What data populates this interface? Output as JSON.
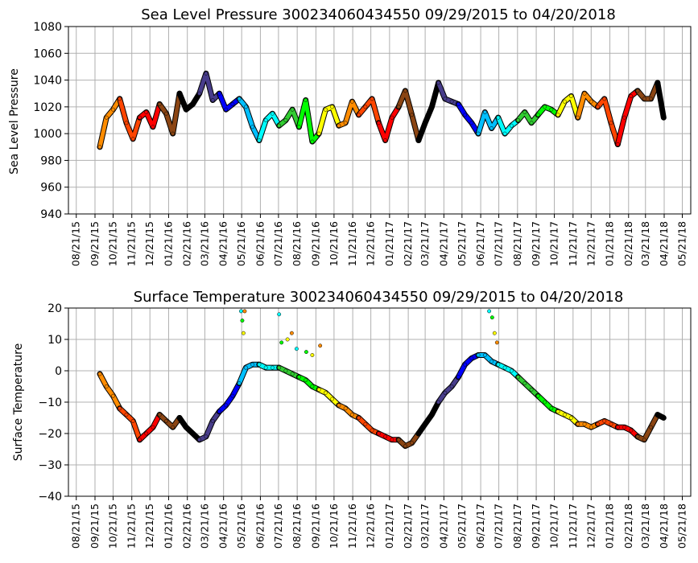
{
  "chart_data": [
    {
      "type": "line",
      "title": "Sea Level Pressure 300234060434550  09/29/2015 to 04/20/2018",
      "xlabel": "",
      "ylabel": "Sea Level Pressure",
      "ylim": [
        940,
        1080
      ],
      "yticks": [
        "940",
        "960",
        "980",
        "1000",
        "1020",
        "1040",
        "1060",
        "1080"
      ],
      "xticks": [
        "08/21/15",
        "09/21/15",
        "10/21/15",
        "11/21/15",
        "12/21/15",
        "01/21/16",
        "02/21/16",
        "03/21/16",
        "04/21/16",
        "05/21/16",
        "06/21/16",
        "07/21/16",
        "08/21/16",
        "09/21/16",
        "10/21/16",
        "11/21/16",
        "12/21/16",
        "01/21/17",
        "02/21/17",
        "03/21/17",
        "04/21/17",
        "05/21/17",
        "06/21/17",
        "07/21/17",
        "08/21/17",
        "09/21/17",
        "10/21/17",
        "11/21/17",
        "12/21/17",
        "01/21/18",
        "02/21/18",
        "03/21/18",
        "04/21/18",
        "05/21/18"
      ],
      "grid": true,
      "legend": "none",
      "x": [
        "09/29/15",
        "10/10/15",
        "10/21/15",
        "11/01/15",
        "11/12/15",
        "11/23/15",
        "12/04/15",
        "12/15/15",
        "12/26/15",
        "01/06/16",
        "01/17/16",
        "01/28/16",
        "02/08/16",
        "02/19/16",
        "03/01/16",
        "03/12/16",
        "03/23/16",
        "04/03/16",
        "04/14/16",
        "04/25/16",
        "05/06/16",
        "05/17/16",
        "05/28/16",
        "06/08/16",
        "06/19/16",
        "06/30/16",
        "07/11/16",
        "07/22/16",
        "08/02/16",
        "08/13/16",
        "08/24/16",
        "09/04/16",
        "09/15/16",
        "09/26/16",
        "10/07/16",
        "10/18/16",
        "10/29/16",
        "11/09/16",
        "11/20/16",
        "12/01/16",
        "12/12/16",
        "12/23/16",
        "01/03/17",
        "01/14/17",
        "01/25/17",
        "02/05/17",
        "02/16/17",
        "02/27/17",
        "03/10/17",
        "03/21/17",
        "04/01/17",
        "04/12/17",
        "04/23/17",
        "05/04/17",
        "05/15/17",
        "05/26/17",
        "06/06/17",
        "06/17/17",
        "06/28/17",
        "07/09/17",
        "07/20/17",
        "07/31/17",
        "08/11/17",
        "08/22/17",
        "09/02/17",
        "09/13/17",
        "09/24/17",
        "10/05/17",
        "10/16/17",
        "10/27/17",
        "11/07/17",
        "11/18/17",
        "11/29/17",
        "12/10/17",
        "12/21/17",
        "01/01/18",
        "01/12/18",
        "01/23/18",
        "02/03/18",
        "02/14/18",
        "02/25/18",
        "03/08/18",
        "03/19/18",
        "03/30/18",
        "04/10/18",
        "04/20/18"
      ],
      "y": [
        990,
        1012,
        1018,
        1026,
        1008,
        996,
        1012,
        1016,
        1005,
        1022,
        1015,
        1000,
        1030,
        1018,
        1022,
        1030,
        1045,
        1025,
        1030,
        1018,
        1022,
        1026,
        1020,
        1005,
        995,
        1010,
        1015,
        1006,
        1010,
        1018,
        1005,
        1025,
        994,
        1000,
        1018,
        1020,
        1006,
        1008,
        1024,
        1014,
        1020,
        1026,
        1008,
        995,
        1012,
        1020,
        1032,
        1014,
        995,
        1008,
        1020,
        1038,
        1026,
        1024,
        1022,
        1014,
        1008,
        1000,
        1016,
        1004,
        1012,
        1000,
        1006,
        1010,
        1016,
        1008,
        1014,
        1020,
        1018,
        1014,
        1024,
        1028,
        1012,
        1030,
        1024,
        1020,
        1026,
        1008,
        992,
        1012,
        1028,
        1032,
        1026,
        1026,
        1038,
        1012
      ],
      "colors": [
        "#ff8c00",
        "#ff4500",
        "#ff0000",
        "#8b4513",
        "#000000",
        "#483d8b",
        "#0000ff",
        "#00bfff",
        "#00ffff",
        "#32cd32",
        "#00ff00",
        "#ffff00",
        "#ff8c00",
        "#ff4500",
        "#ff0000",
        "#8b4513",
        "#000000",
        "#483d8b",
        "#0000ff",
        "#00bfff",
        "#00ffff",
        "#32cd32",
        "#00ff00",
        "#ffff00",
        "#ff8c00",
        "#ff4500",
        "#ff0000",
        "#8b4513",
        "#000000",
        "#483d8b",
        "#0000ff",
        "#00bfff"
      ]
    },
    {
      "type": "scatter",
      "title": "Surface Temperature 300234060434550  09/29/2015 to 04/20/2018",
      "xlabel": "",
      "ylabel": "Surface Temperature",
      "ylim": [
        -40,
        20
      ],
      "yticks": [
        "−40",
        "−30",
        "−20",
        "−10",
        "0",
        "10",
        "20"
      ],
      "xticks": [
        "08/21/15",
        "09/21/15",
        "10/21/15",
        "11/21/15",
        "12/21/15",
        "01/21/16",
        "02/21/16",
        "03/21/16",
        "04/21/16",
        "05/21/16",
        "06/21/16",
        "07/21/16",
        "08/21/16",
        "09/21/16",
        "10/21/16",
        "11/21/16",
        "12/21/16",
        "01/21/17",
        "02/21/17",
        "03/21/17",
        "04/21/17",
        "05/21/17",
        "06/21/17",
        "07/21/17",
        "08/21/17",
        "09/21/17",
        "10/21/17",
        "11/21/17",
        "12/21/17",
        "01/21/18",
        "02/21/18",
        "03/21/18",
        "04/21/18",
        "05/21/18"
      ],
      "grid": true,
      "legend": "none",
      "x": [
        "09/29/15",
        "10/10/15",
        "10/21/15",
        "11/01/15",
        "11/12/15",
        "11/23/15",
        "12/04/15",
        "12/15/15",
        "12/26/15",
        "01/06/16",
        "01/17/16",
        "01/28/16",
        "02/08/16",
        "02/19/16",
        "03/01/16",
        "03/12/16",
        "03/23/16",
        "04/03/16",
        "04/14/16",
        "04/25/16",
        "05/06/16",
        "05/17/16",
        "05/28/16",
        "06/08/16",
        "06/19/16",
        "06/30/16",
        "07/11/16",
        "07/22/16",
        "08/02/16",
        "08/13/16",
        "08/24/16",
        "09/04/16",
        "09/15/16",
        "09/26/16",
        "10/07/16",
        "10/18/16",
        "10/29/16",
        "11/09/16",
        "11/20/16",
        "12/01/16",
        "12/12/16",
        "12/23/16",
        "01/03/17",
        "01/14/17",
        "01/25/17",
        "02/05/17",
        "02/16/17",
        "02/27/17",
        "03/10/17",
        "03/21/17",
        "04/01/17",
        "04/12/17",
        "04/23/17",
        "05/04/17",
        "05/15/17",
        "05/26/17",
        "06/06/17",
        "06/17/17",
        "06/28/17",
        "07/09/17",
        "07/20/17",
        "07/31/17",
        "08/11/17",
        "08/22/17",
        "09/02/17",
        "09/13/17",
        "09/24/17",
        "10/05/17",
        "10/16/17",
        "10/27/17",
        "11/07/17",
        "11/18/17",
        "11/29/17",
        "12/10/17",
        "12/21/17",
        "01/01/18",
        "01/12/18",
        "01/23/18",
        "02/03/18",
        "02/14/18",
        "02/25/18",
        "03/08/18",
        "03/19/18",
        "03/30/18",
        "04/10/18",
        "04/20/18"
      ],
      "y": [
        -1,
        -5,
        -8,
        -12,
        -14,
        -16,
        -22,
        -20,
        -18,
        -14,
        -16,
        -18,
        -15,
        -18,
        -20,
        -22,
        -21,
        -16,
        -13,
        -11,
        -8,
        -4,
        1,
        2,
        2,
        1,
        1,
        1,
        0,
        -1,
        -2,
        -3,
        -5,
        -6,
        -7,
        -9,
        -11,
        -12,
        -14,
        -15,
        -17,
        -19,
        -20,
        -21,
        -22,
        -22,
        -24,
        -23,
        -20,
        -17,
        -14,
        -10,
        -7,
        -5,
        -2,
        2,
        4,
        5,
        5,
        3,
        2,
        1,
        0,
        -2,
        -4,
        -6,
        -8,
        -10,
        -12,
        -13,
        -14,
        -15,
        -17,
        -17,
        -18,
        -17,
        -16,
        -17,
        -18,
        -18,
        -19,
        -21,
        -22,
        -18,
        -14,
        -15
      ],
      "outliers": [
        {
          "x": "05/20/16",
          "y": 19
        },
        {
          "x": "05/22/16",
          "y": 16
        },
        {
          "x": "05/24/16",
          "y": 12
        },
        {
          "x": "05/26/16",
          "y": 19
        },
        {
          "x": "07/22/16",
          "y": 18
        },
        {
          "x": "07/26/16",
          "y": 9
        },
        {
          "x": "08/05/16",
          "y": 10
        },
        {
          "x": "08/12/16",
          "y": 12
        },
        {
          "x": "08/20/16",
          "y": 7
        },
        {
          "x": "09/05/16",
          "y": 6
        },
        {
          "x": "09/15/16",
          "y": 5
        },
        {
          "x": "09/28/16",
          "y": 8
        },
        {
          "x": "07/05/17",
          "y": 19
        },
        {
          "x": "07/10/17",
          "y": 17
        },
        {
          "x": "07/14/17",
          "y": 12
        },
        {
          "x": "07/18/17",
          "y": 9
        }
      ],
      "colors": [
        "#ff8c00",
        "#ff4500",
        "#ff0000",
        "#8b4513",
        "#000000",
        "#483d8b",
        "#0000ff",
        "#00bfff",
        "#00ffff",
        "#32cd32",
        "#00ff00",
        "#ffff00",
        "#ff8c00",
        "#ff4500",
        "#ff0000",
        "#8b4513",
        "#000000",
        "#483d8b",
        "#0000ff",
        "#00bfff",
        "#00ffff",
        "#32cd32",
        "#00ff00",
        "#ffff00",
        "#ff8c00",
        "#ff4500",
        "#ff0000",
        "#8b4513",
        "#000000",
        "#483d8b",
        "#0000ff",
        "#00bfff"
      ]
    }
  ]
}
